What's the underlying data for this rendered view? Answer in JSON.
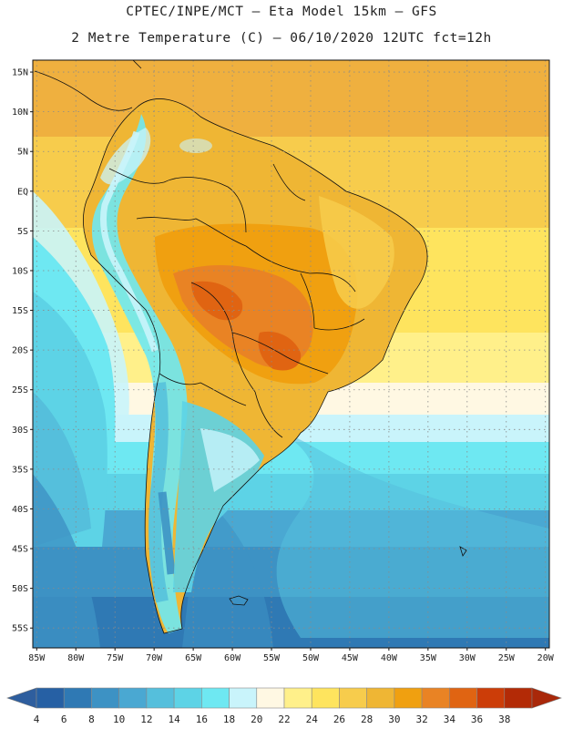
{
  "header": {
    "line1": "CPTEC/INPE/MCT —  Eta Model 15km — GFS",
    "line2": "2 Metre Temperature (C) — 06/10/2020 12UTC fct=12h"
  },
  "map": {
    "lat_labels": [
      "15N",
      "10N",
      "5N",
      "EQ",
      "5S",
      "10S",
      "15S",
      "20S",
      "25S",
      "30S",
      "35S",
      "40S",
      "45S",
      "50S",
      "55S"
    ],
    "lon_labels": [
      "85W",
      "80W",
      "75W",
      "70W",
      "65W",
      "60W",
      "55W",
      "50W",
      "45W",
      "40W",
      "35W",
      "30W",
      "25W",
      "20W"
    ],
    "grid": "dotted",
    "lat_range": [
      16.5,
      -57.5
    ],
    "lon_range": [
      -85.5,
      -19.5
    ]
  },
  "colorbar": {
    "ticks": [
      "4",
      "6",
      "8",
      "10",
      "12",
      "14",
      "16",
      "18",
      "20",
      "22",
      "24",
      "26",
      "28",
      "30",
      "32",
      "34",
      "36",
      "38"
    ],
    "colors": [
      "#2660a4",
      "#2f79b4",
      "#3d92c4",
      "#4aa8d2",
      "#55bfdc",
      "#5dd3e6",
      "#6ee8f2",
      "#c9f4fb",
      "#fff8e3",
      "#fff08a",
      "#fee45e",
      "#f7cc4c",
      "#efb634",
      "#f0a010",
      "#e98324",
      "#e06412",
      "#cc3d08",
      "#b32a06"
    ],
    "under_color": "#2e5e9e",
    "over_color": "#a9280a"
  }
}
